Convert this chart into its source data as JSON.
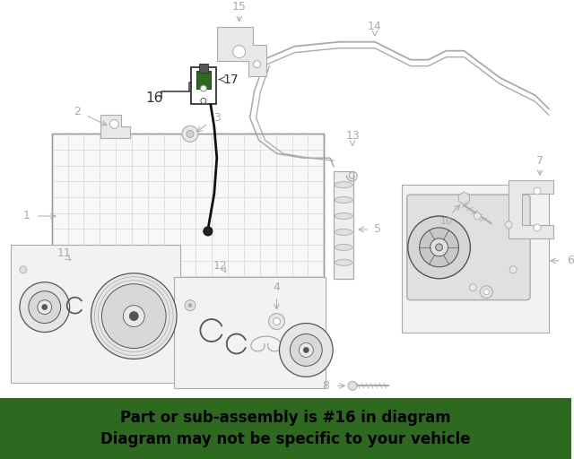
{
  "banner_color": "#2d6a1f",
  "banner_text_line1": "Part or sub-assembly is #16 in diagram",
  "banner_text_line2": "Diagram may not be specific to your vehicle",
  "banner_text_color": "#000000",
  "banner_font_size": 12,
  "bg_color": "#ffffff",
  "lc": "#aaaaaa",
  "tc": "#aaaaaa",
  "dark_lc": "#555555",
  "green_color": "#2d6a1f",
  "black_color": "#111111",
  "fig_width": 6.4,
  "fig_height": 5.12,
  "dpi": 100
}
